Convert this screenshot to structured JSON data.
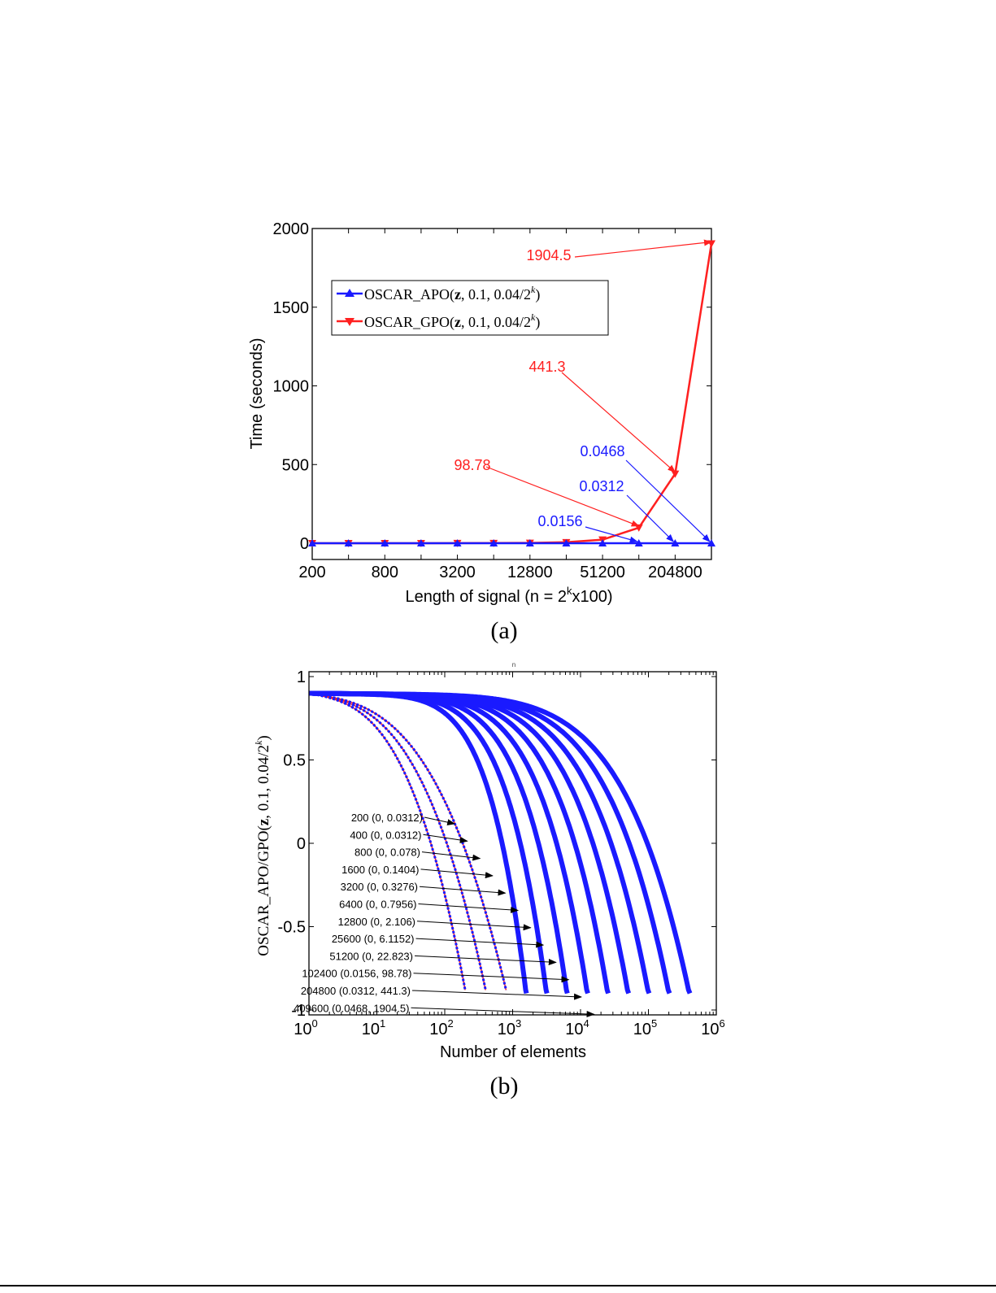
{
  "figure_a": {
    "caption": "(a)",
    "chart_data": {
      "type": "line",
      "xlabel_main": "Length of signal (n = 2",
      "xlabel_sup": "k",
      "xlabel_tail": "x100)",
      "ylabel": "Time (seconds)",
      "ylim": [
        0,
        2000
      ],
      "yticks": [
        0,
        500,
        1000,
        1500,
        2000
      ],
      "x": [
        200,
        400,
        800,
        1600,
        3200,
        6400,
        12800,
        25600,
        51200,
        102400,
        204800,
        409600
      ],
      "xticks": [
        200,
        800,
        3200,
        12800,
        51200,
        204800
      ],
      "x_scale": "log2",
      "grid": false,
      "legend_position": "upper-left",
      "series": [
        {
          "name": "OSCAR_APO(z, 0.1, 0.04/2^k)",
          "legend_main": "OSCAR_APO(",
          "legend_bold": "z",
          "legend_mid": ", 0.1, 0.04/2",
          "legend_sup": "k",
          "legend_end": ")",
          "color": "#1a1aff",
          "marker": "triangle-up",
          "values": [
            0,
            0,
            0,
            0,
            0,
            0,
            0,
            0,
            0,
            0.0156,
            0.0312,
            0.0468
          ]
        },
        {
          "name": "OSCAR_GPO(z, 0.1, 0.04/2^k)",
          "legend_main": "OSCAR_GPO(",
          "legend_bold": "z",
          "legend_mid": ", 0.1, 0.04/2",
          "legend_sup": "k",
          "legend_end": ")",
          "color": "#ff2020",
          "marker": "triangle-down",
          "values": [
            0.0312,
            0.0312,
            0.078,
            0.1404,
            0.3276,
            0.7956,
            2.106,
            6.1152,
            22.823,
            98.78,
            441.3,
            1904.5
          ]
        }
      ],
      "annotations": [
        {
          "text": "1904.5",
          "color": "#ff2020",
          "x": 409600,
          "y": 1904.5
        },
        {
          "text": "441.3",
          "color": "#ff2020",
          "x": 204800,
          "y": 441.3
        },
        {
          "text": "98.78",
          "color": "#ff2020",
          "x": 102400,
          "y": 98.78
        },
        {
          "text": "0.0468",
          "color": "#1a1aff",
          "x": 409600,
          "y": 0.0468
        },
        {
          "text": "0.0312",
          "color": "#1a1aff",
          "x": 204800,
          "y": 0.0312
        },
        {
          "text": "0.0156",
          "color": "#1a1aff",
          "x": 102400,
          "y": 0.0156
        }
      ]
    }
  },
  "figure_b": {
    "caption": "(b)",
    "stray_mark": "n",
    "chart_data": {
      "type": "line",
      "xlabel": "Number of elements",
      "ylabel_main": "OSCAR_APO/GPO(",
      "ylabel_bold": "z",
      "ylabel_mid": ", 0.1, 0.04/2",
      "ylabel_sup": "k",
      "ylabel_end": ")",
      "x_scale": "log10",
      "xlim": [
        1,
        1000000
      ],
      "xtick_exponents": [
        0,
        1,
        2,
        3,
        4,
        5,
        6
      ],
      "xtick_base": "10",
      "ylim": [
        -1,
        1
      ],
      "yticks": [
        -1,
        -0.5,
        0,
        0.5,
        1
      ],
      "grid": false,
      "series_colors": [
        "#1a1aff",
        "#ff2020"
      ],
      "curves": [
        {
          "n": 200,
          "label": "200 (0, 0.0312)"
        },
        {
          "n": 400,
          "label": "400 (0, 0.0312)"
        },
        {
          "n": 800,
          "label": "800 (0, 0.078)"
        },
        {
          "n": 1600,
          "label": "1600 (0, 0.1404)"
        },
        {
          "n": 3200,
          "label": "3200 (0, 0.3276)"
        },
        {
          "n": 6400,
          "label": "6400 (0, 0.7956)"
        },
        {
          "n": 12800,
          "label": "12800 (0, 2.106)"
        },
        {
          "n": 25600,
          "label": "25600 (0, 6.1152)"
        },
        {
          "n": 51200,
          "label": "51200 (0, 22.823)"
        },
        {
          "n": 102400,
          "label": "102400 (0.0156, 98.78)"
        },
        {
          "n": 204800,
          "label": "204800 (0.0312, 441.3)"
        },
        {
          "n": 409600,
          "label": "409600 (0.0468, 1904.5)"
        }
      ]
    }
  }
}
